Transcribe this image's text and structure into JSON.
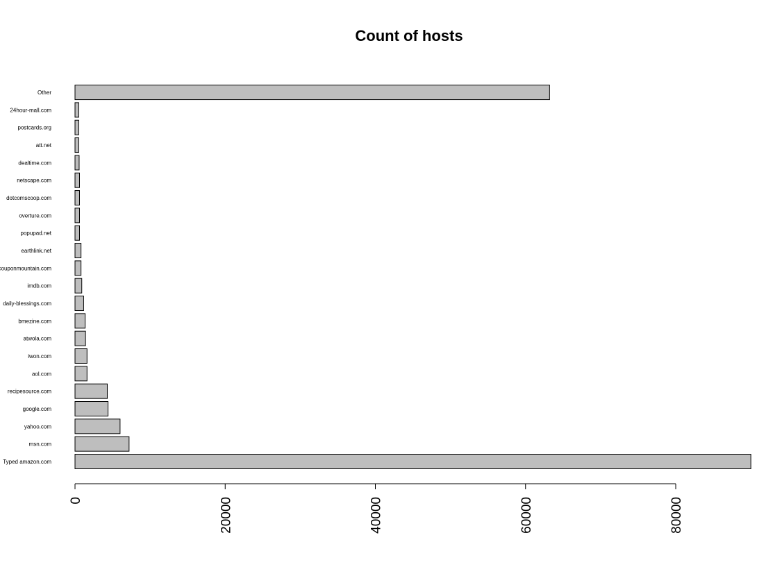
{
  "chart_data": {
    "type": "bar",
    "orientation": "horizontal",
    "title": "Count of hosts",
    "xlabel": "",
    "ylabel": "",
    "xlim": [
      0,
      90000
    ],
    "grid": false,
    "categories": [
      "Typed amazon.com",
      "msn.com",
      "yahoo.com",
      "google.com",
      "recipesource.com",
      "aol.com",
      "iwon.com",
      "atwola.com",
      "bmezine.com",
      "daily-blessings.com",
      "imdb.com",
      "couponmountain.com",
      "earthlink.net",
      "popupad.net",
      "overture.com",
      "dotcomscoop.com",
      "netscape.com",
      "dealtime.com",
      "att.net",
      "postcards.org",
      "24hour-mall.com",
      "Other"
    ],
    "values": [
      90000,
      7200,
      6000,
      4400,
      4300,
      1600,
      1600,
      1400,
      1350,
      1150,
      900,
      800,
      800,
      600,
      600,
      600,
      600,
      550,
      500,
      500,
      500,
      63200
    ],
    "x_ticks": [
      "0",
      "20000",
      "40000",
      "60000",
      "80000"
    ],
    "colors": {
      "bar_fill": "#bebebe",
      "bar_stroke": "#000000"
    }
  }
}
